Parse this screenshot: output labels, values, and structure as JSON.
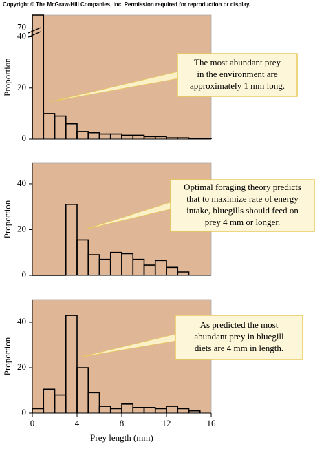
{
  "copyright": "Copyright © The McGraw-Hill Companies, Inc. Permission required for reproduction or display.",
  "chart_data": [
    {
      "type": "histogram",
      "ylabel": "Proportion",
      "panel_color": "#dfb797",
      "line_color": "#000000",
      "bins": [
        0,
        1,
        2,
        3,
        4,
        5,
        6,
        7,
        8,
        9,
        10,
        11,
        12,
        13,
        14,
        15,
        16
      ],
      "values": [
        75,
        10,
        9,
        6,
        3,
        2.5,
        2,
        2,
        1.5,
        1.5,
        1,
        1,
        0.5,
        0.5,
        0.3,
        0.1
      ],
      "xlim": [
        0,
        16
      ],
      "ylim": [
        0,
        75
      ],
      "ybreak": [
        40,
        70
      ],
      "yticks": [
        0,
        20,
        40,
        70
      ],
      "annotation": [
        "The most abundant prey",
        "in the environment are",
        "approximately 1 mm long."
      ]
    },
    {
      "type": "histogram",
      "ylabel": "Proportion",
      "panel_color": "#dfb797",
      "line_color": "#000000",
      "bins": [
        0,
        1,
        2,
        3,
        4,
        5,
        6,
        7,
        8,
        9,
        10,
        11,
        12,
        13,
        14
      ],
      "values": [
        0,
        0,
        0,
        31,
        15.5,
        9,
        7,
        10,
        9.5,
        7,
        4.5,
        6.5,
        3.5,
        1.5
      ],
      "xlim": [
        0,
        16
      ],
      "ylim": [
        0,
        49
      ],
      "yticks": [
        0,
        20,
        40
      ],
      "annotation": [
        "Optimal foraging theory predicts",
        "that to maximize rate of energy",
        "intake, bluegills should feed on",
        "prey 4 mm or longer."
      ]
    },
    {
      "type": "histogram",
      "ylabel": "Proportion",
      "xlabel": "Prey length (mm)",
      "panel_color": "#dfb797",
      "line_color": "#000000",
      "bins": [
        0,
        1,
        2,
        3,
        4,
        5,
        6,
        7,
        8,
        9,
        10,
        11,
        12,
        13,
        14,
        15
      ],
      "values": [
        2,
        10.5,
        8,
        43,
        20,
        9,
        3,
        2,
        4,
        2.5,
        2.5,
        2,
        3,
        2,
        1
      ],
      "xlim": [
        0,
        16
      ],
      "xticks": [
        0,
        4,
        8,
        12,
        16
      ],
      "ylim": [
        0,
        50
      ],
      "yticks": [
        0,
        20,
        40
      ],
      "annotation": [
        "As predicted the most",
        "abundant prey in bluegill",
        "diets are 4 mm in length."
      ]
    }
  ]
}
